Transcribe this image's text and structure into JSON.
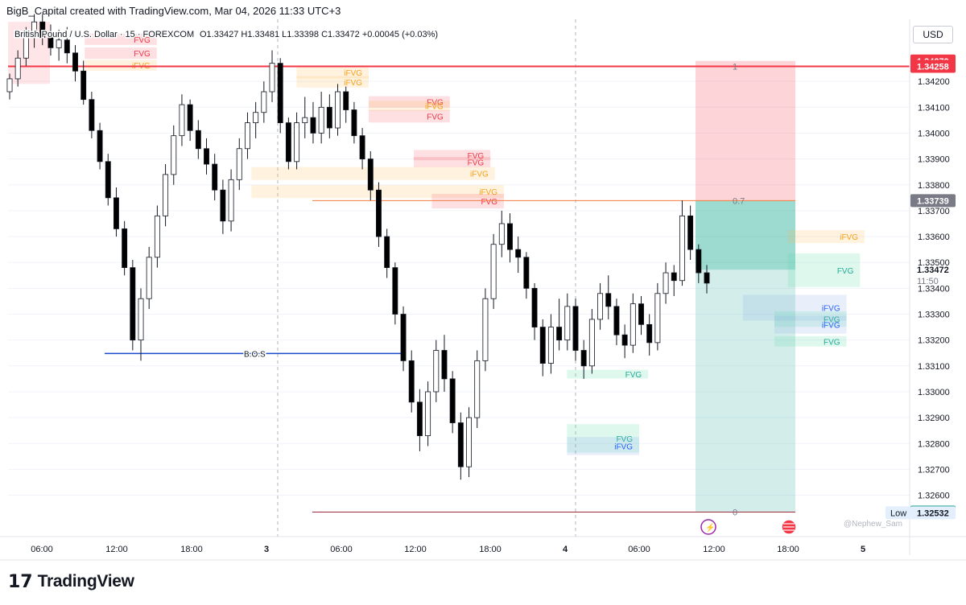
{
  "header": {
    "attribution": "BigB_Capital created with TradingView.com, Mar 04, 2026 11:33 UTC+3"
  },
  "legend": {
    "symbol": "British Pound / U.S. Dollar · 15 · FOREXCOM",
    "ohlc": "O1.33427  H1.33481  L1.33398  C1.33472  +0.00045 (+0.03%)"
  },
  "price_scale": {
    "currency": "USD",
    "min": 1.3244,
    "max": 1.3444,
    "ticks": [
      "1.34200",
      "1.34100",
      "1.34000",
      "1.33900",
      "1.33800",
      "1.33700",
      "1.33600",
      "1.33500",
      "1.33400",
      "1.33300",
      "1.33200",
      "1.33100",
      "1.33000",
      "1.32900",
      "1.32800",
      "1.32700",
      "1.32600"
    ],
    "tick_values": [
      1.342,
      1.341,
      1.34,
      1.339,
      1.338,
      1.337,
      1.336,
      1.335,
      1.334,
      1.333,
      1.332,
      1.331,
      1.33,
      1.329,
      1.328,
      1.327,
      1.326
    ],
    "labels": [
      {
        "text": "1.34279",
        "value": 1.34279,
        "color": "#f23645"
      },
      {
        "text": "1.34258",
        "value": 1.34258,
        "color": "#f23645"
      },
      {
        "text": "1.33739",
        "value": 1.33739,
        "color": "#787b86"
      },
      {
        "text": "1.32535",
        "value": 1.32535,
        "color": "#089981"
      },
      {
        "text": "1.32532",
        "value": 1.32532,
        "color": "#e3effd",
        "text_color": "#131722",
        "tag": "Low"
      }
    ],
    "last_price": {
      "text": "1.33472",
      "value": 1.33472,
      "countdown": "11:50"
    }
  },
  "time_axis": {
    "labels": [
      "06:00",
      "12:00",
      "18:00",
      "3",
      "06:00",
      "12:00",
      "18:00",
      "4",
      "06:00",
      "12:00",
      "18:00",
      "5"
    ],
    "bold": [
      false,
      false,
      false,
      true,
      false,
      false,
      false,
      true,
      false,
      false,
      false,
      true
    ]
  },
  "chart_data": {
    "type": "candlestick",
    "title": "British Pound / U.S. Dollar · 15 · FOREXCOM",
    "ylabel": "USD",
    "ylim": [
      1.3244,
      1.3444
    ],
    "x_ticks": [
      "06:00",
      "12:00",
      "18:00",
      "3",
      "06:00",
      "12:00",
      "18:00",
      "4",
      "06:00",
      "12:00",
      "18:00",
      "5"
    ],
    "bars": [
      [
        1.3416,
        1.3423,
        1.3413,
        1.3421
      ],
      [
        1.3421,
        1.3432,
        1.3418,
        1.3429
      ],
      [
        1.3429,
        1.3441,
        1.3426,
        1.3438
      ],
      [
        1.3438,
        1.3446,
        1.3433,
        1.3443
      ],
      [
        1.3443,
        1.3446,
        1.3434,
        1.3437
      ],
      [
        1.3437,
        1.3442,
        1.343,
        1.3433
      ],
      [
        1.3433,
        1.344,
        1.3428,
        1.3436
      ],
      [
        1.3436,
        1.3441,
        1.3427,
        1.3431
      ],
      [
        1.3431,
        1.3434,
        1.342,
        1.3424
      ],
      [
        1.3424,
        1.3428,
        1.3411,
        1.3413
      ],
      [
        1.3413,
        1.3416,
        1.3398,
        1.3401
      ],
      [
        1.3401,
        1.3404,
        1.3386,
        1.3389
      ],
      [
        1.3389,
        1.3392,
        1.3372,
        1.3375
      ],
      [
        1.3375,
        1.3379,
        1.336,
        1.3363
      ],
      [
        1.3363,
        1.3366,
        1.3345,
        1.3348
      ],
      [
        1.3348,
        1.3351,
        1.3316,
        1.332
      ],
      [
        1.332,
        1.334,
        1.3312,
        1.3336
      ],
      [
        1.3336,
        1.3356,
        1.3332,
        1.3352
      ],
      [
        1.3352,
        1.3372,
        1.3348,
        1.3368
      ],
      [
        1.3368,
        1.3388,
        1.3364,
        1.3384
      ],
      [
        1.3384,
        1.3403,
        1.338,
        1.3399
      ],
      [
        1.3399,
        1.3415,
        1.3395,
        1.3411
      ],
      [
        1.3411,
        1.3413,
        1.3397,
        1.3401
      ],
      [
        1.3401,
        1.3405,
        1.339,
        1.3394
      ],
      [
        1.3394,
        1.3398,
        1.3384,
        1.3388
      ],
      [
        1.3388,
        1.3392,
        1.3374,
        1.3378
      ],
      [
        1.3378,
        1.3382,
        1.3361,
        1.3366
      ],
      [
        1.3366,
        1.3386,
        1.3362,
        1.3382
      ],
      [
        1.3382,
        1.3398,
        1.3378,
        1.3394
      ],
      [
        1.3394,
        1.3408,
        1.339,
        1.3404
      ],
      [
        1.3404,
        1.3412,
        1.3398,
        1.3408
      ],
      [
        1.3408,
        1.342,
        1.3404,
        1.3416
      ],
      [
        1.3416,
        1.3432,
        1.3412,
        1.3427
      ],
      [
        1.3427,
        1.3429,
        1.34,
        1.3404
      ],
      [
        1.3404,
        1.3406,
        1.3386,
        1.3389
      ],
      [
        1.3389,
        1.3408,
        1.3386,
        1.3404
      ],
      [
        1.3404,
        1.3414,
        1.3398,
        1.3406
      ],
      [
        1.3406,
        1.3412,
        1.3396,
        1.34
      ],
      [
        1.34,
        1.3416,
        1.3396,
        1.341
      ],
      [
        1.341,
        1.3415,
        1.3398,
        1.3402
      ],
      [
        1.3402,
        1.3419,
        1.3399,
        1.3416
      ],
      [
        1.3416,
        1.3418,
        1.3404,
        1.3409
      ],
      [
        1.3409,
        1.3412,
        1.3396,
        1.3399
      ],
      [
        1.3399,
        1.3402,
        1.3386,
        1.339
      ],
      [
        1.339,
        1.3393,
        1.3374,
        1.3378
      ],
      [
        1.3378,
        1.3381,
        1.3356,
        1.336
      ],
      [
        1.336,
        1.3363,
        1.3344,
        1.3348
      ],
      [
        1.3348,
        1.335,
        1.3326,
        1.333
      ],
      [
        1.333,
        1.3333,
        1.3308,
        1.3312
      ],
      [
        1.3312,
        1.3316,
        1.3292,
        1.3296
      ],
      [
        1.3296,
        1.3301,
        1.3277,
        1.3283
      ],
      [
        1.3283,
        1.3304,
        1.3279,
        1.33
      ],
      [
        1.33,
        1.332,
        1.3296,
        1.3316
      ],
      [
        1.3316,
        1.3322,
        1.33,
        1.3305
      ],
      [
        1.3305,
        1.3308,
        1.3284,
        1.3288
      ],
      [
        1.3288,
        1.3292,
        1.3266,
        1.3271
      ],
      [
        1.3271,
        1.3294,
        1.3267,
        1.329
      ],
      [
        1.329,
        1.3316,
        1.3286,
        1.3312
      ],
      [
        1.3312,
        1.334,
        1.3308,
        1.3336
      ],
      [
        1.3336,
        1.3361,
        1.3332,
        1.3357
      ],
      [
        1.3357,
        1.337,
        1.3352,
        1.3365
      ],
      [
        1.3365,
        1.3369,
        1.335,
        1.3355
      ],
      [
        1.3355,
        1.336,
        1.3346,
        1.3352
      ],
      [
        1.3352,
        1.3354,
        1.3336,
        1.334
      ],
      [
        1.334,
        1.3342,
        1.332,
        1.3325
      ],
      [
        1.3325,
        1.3328,
        1.3306,
        1.3311
      ],
      [
        1.3311,
        1.333,
        1.3307,
        1.3325
      ],
      [
        1.3325,
        1.3336,
        1.3316,
        1.332
      ],
      [
        1.332,
        1.3338,
        1.3316,
        1.3333
      ],
      [
        1.3333,
        1.3336,
        1.3312,
        1.3316
      ],
      [
        1.3316,
        1.332,
        1.3305,
        1.331
      ],
      [
        1.331,
        1.3332,
        1.3307,
        1.3328
      ],
      [
        1.3328,
        1.3342,
        1.3324,
        1.3338
      ],
      [
        1.3338,
        1.3345,
        1.3328,
        1.3333
      ],
      [
        1.3333,
        1.3336,
        1.3318,
        1.3322
      ],
      [
        1.3322,
        1.3326,
        1.3313,
        1.3318
      ],
      [
        1.3318,
        1.3338,
        1.3315,
        1.3334
      ],
      [
        1.3334,
        1.3337,
        1.3322,
        1.3326
      ],
      [
        1.3326,
        1.333,
        1.3314,
        1.3319
      ],
      [
        1.3319,
        1.3342,
        1.3316,
        1.3338
      ],
      [
        1.3338,
        1.335,
        1.3334,
        1.3346
      ],
      [
        1.3346,
        1.3349,
        1.3337,
        1.3343
      ],
      [
        1.3343,
        1.3374,
        1.3341,
        1.3368
      ],
      [
        1.3368,
        1.3372,
        1.3351,
        1.3355
      ],
      [
        1.3355,
        1.3357,
        1.3342,
        1.3346
      ],
      [
        1.3346,
        1.3349,
        1.3338,
        1.3342
      ]
    ],
    "zones": [
      {
        "label": "FVG",
        "color": "red",
        "top": 1.34385,
        "bottom": 1.34341,
        "x_from": 0.085,
        "x_to": 0.165
      },
      {
        "label": "FVG",
        "color": "red",
        "top": 1.34331,
        "bottom": 1.34287,
        "x_from": 0.085,
        "x_to": 0.165
      },
      {
        "label": "iFVG",
        "color": "orange",
        "top": 1.34283,
        "bottom": 1.34241,
        "x_from": 0.085,
        "x_to": 0.165
      },
      {
        "label": "iFVG",
        "color": "orange",
        "top": 1.34256,
        "bottom": 1.34212,
        "x_from": 0.32,
        "x_to": 0.4
      },
      {
        "label": "iFVG",
        "color": "orange",
        "top": 1.3422,
        "bottom": 1.34176,
        "x_from": 0.32,
        "x_to": 0.4
      },
      {
        "label": "FVG",
        "color": "red",
        "top": 1.34143,
        "bottom": 1.34099,
        "x_from": 0.4,
        "x_to": 0.49
      },
      {
        "label": "iFVG",
        "color": "orange",
        "top": 1.34125,
        "bottom": 1.34085,
        "x_from": 0.4,
        "x_to": 0.49
      },
      {
        "label": "FVG",
        "color": "red",
        "top": 1.34089,
        "bottom": 1.34041,
        "x_from": 0.4,
        "x_to": 0.49
      },
      {
        "label": "FVG",
        "color": "red",
        "top": 1.33935,
        "bottom": 1.33895,
        "x_from": 0.45,
        "x_to": 0.535
      },
      {
        "label": "FVG",
        "color": "red",
        "top": 1.33908,
        "bottom": 1.33868,
        "x_from": 0.45,
        "x_to": 0.535
      },
      {
        "label": "iFVG",
        "color": "orange",
        "top": 1.33869,
        "bottom": 1.33819,
        "x_from": 0.27,
        "x_to": 0.54
      },
      {
        "label": "iFVG",
        "color": "orange",
        "top": 1.33799,
        "bottom": 1.33749,
        "x_from": 0.27,
        "x_to": 0.55
      },
      {
        "label": "FVG",
        "color": "red",
        "top": 1.33765,
        "bottom": 1.33709,
        "x_from": 0.47,
        "x_to": 0.55
      },
      {
        "label": "iFVG",
        "color": "orange",
        "top": 1.33625,
        "bottom": 1.33575,
        "x_from": 0.865,
        "x_to": 0.95
      },
      {
        "label": "FVG",
        "color": "green",
        "top": 1.33535,
        "bottom": 1.33405,
        "x_from": 0.865,
        "x_to": 0.945
      },
      {
        "label": "iFVG",
        "color": "blue",
        "top": 1.33375,
        "bottom": 1.33275,
        "x_from": 0.815,
        "x_to": 0.93
      },
      {
        "label": "FVG",
        "color": "green",
        "top": 1.33311,
        "bottom": 1.33251,
        "x_from": 0.85,
        "x_to": 0.93
      },
      {
        "label": "iFVG",
        "color": "blue",
        "top": 1.33295,
        "bottom": 1.33225,
        "x_from": 0.85,
        "x_to": 0.93
      },
      {
        "label": "FVG",
        "color": "green",
        "top": 1.33215,
        "bottom": 1.33175,
        "x_from": 0.85,
        "x_to": 0.93
      },
      {
        "label": "FVG",
        "color": "green",
        "top": 1.33085,
        "bottom": 1.33051,
        "x_from": 0.62,
        "x_to": 0.71
      },
      {
        "label": "FVG",
        "color": "green",
        "top": 1.32875,
        "bottom": 1.32765,
        "x_from": 0.62,
        "x_to": 0.7
      },
      {
        "label": "iFVG",
        "color": "blue",
        "top": 1.32825,
        "bottom": 1.32755,
        "x_from": 0.62,
        "x_to": 0.7
      }
    ],
    "levels": [
      {
        "label": "1",
        "value": 1.34258,
        "color": "#f23645"
      },
      {
        "label": "0.7",
        "value": 1.33739,
        "color": "#f57c3d"
      },
      {
        "label": "0",
        "value": 1.32535,
        "color": "#9c2a3a"
      }
    ],
    "bos": {
      "label": "B.O.S",
      "value": 1.33148,
      "color": "#1848cc"
    },
    "risk_box": {
      "stop": 1.34279,
      "entry": 1.33739,
      "target": 1.32535,
      "current": 1.33472
    }
  },
  "watermark": "@Nephew_Sam",
  "footer": {
    "brand": "TradingView",
    "logo": "17"
  },
  "colors": {
    "up": "#ffffff",
    "down": "#000000",
    "border": "#131722",
    "grid": "#f0f3fa"
  }
}
